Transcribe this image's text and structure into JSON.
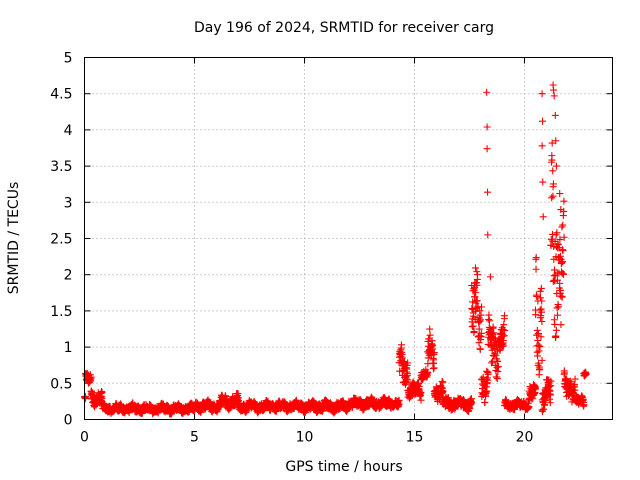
{
  "chart_data": {
    "type": "scatter",
    "title": "Day 196 of 2024, SRMTID for receiver carg",
    "xlabel": "GPS time / hours",
    "ylabel": "SRMTID / TECUs",
    "xlim": [
      0,
      24
    ],
    "ylim": [
      0,
      5
    ],
    "x_ticks": [
      0,
      5,
      10,
      15,
      20
    ],
    "x_tick_labels": [
      "0",
      "5",
      "10",
      "15",
      "20"
    ],
    "y_ticks": [
      0,
      0.5,
      1,
      1.5,
      2,
      2.5,
      3,
      3.5,
      4,
      4.5,
      5
    ],
    "y_tick_labels": [
      "0",
      "0.5",
      "1",
      "1.5",
      "2",
      "2.5",
      "3",
      "3.5",
      "4",
      "4.5",
      "5"
    ],
    "grid": true,
    "marker": "+",
    "marker_color": "#ff0000",
    "series": [
      {
        "name": "SRMTID",
        "segments": [
          {
            "t0": 0.0,
            "t1": 0.05,
            "base": 0.3,
            "amp": 0.05
          },
          {
            "t0": 0.05,
            "t1": 0.3,
            "base": 0.55,
            "amp": 0.1
          },
          {
            "t0": 0.3,
            "t1": 0.8,
            "base": 0.3,
            "amp": 0.12
          },
          {
            "t0": 0.8,
            "t1": 5.0,
            "base": 0.15,
            "amp": 0.07
          },
          {
            "t0": 5.0,
            "t1": 6.2,
            "base": 0.18,
            "amp": 0.08
          },
          {
            "t0": 6.2,
            "t1": 7.0,
            "base": 0.25,
            "amp": 0.1
          },
          {
            "t0": 7.0,
            "t1": 12.0,
            "base": 0.18,
            "amp": 0.08
          },
          {
            "t0": 12.0,
            "t1": 14.3,
            "base": 0.22,
            "amp": 0.08
          },
          {
            "t0": 14.3,
            "t1": 14.7,
            "base": 0.7,
            "amp": 0.3
          },
          {
            "t0": 14.7,
            "t1": 15.3,
            "base": 0.4,
            "amp": 0.12
          },
          {
            "t0": 15.3,
            "t1": 15.6,
            "base": 0.65,
            "amp": 0.1
          },
          {
            "t0": 15.6,
            "t1": 15.9,
            "base": 0.9,
            "amp": 0.3
          },
          {
            "t0": 15.9,
            "t1": 16.3,
            "base": 0.4,
            "amp": 0.15
          },
          {
            "t0": 16.3,
            "t1": 17.6,
            "base": 0.22,
            "amp": 0.1
          },
          {
            "t0": 17.6,
            "t1": 18.05,
            "base": 1.5,
            "amp": 0.6
          },
          {
            "t0": 18.05,
            "t1": 18.35,
            "base": 0.5,
            "amp": 0.3
          },
          {
            "t0": 18.35,
            "t1": 18.9,
            "base": 1.0,
            "amp": 0.4
          },
          {
            "t0": 18.9,
            "t1": 19.1,
            "base": 1.15,
            "amp": 0.3
          },
          {
            "t0": 19.1,
            "t1": 20.2,
            "base": 0.2,
            "amp": 0.07
          },
          {
            "t0": 20.2,
            "t1": 20.5,
            "base": 0.35,
            "amp": 0.15
          },
          {
            "t0": 20.5,
            "t1": 20.8,
            "base": 1.4,
            "amp": 1.0
          },
          {
            "t0": 20.8,
            "t1": 21.2,
            "base": 0.35,
            "amp": 0.25
          },
          {
            "t0": 21.2,
            "t1": 21.5,
            "base": 2.5,
            "amp": 1.5
          },
          {
            "t0": 21.5,
            "t1": 21.8,
            "base": 2.0,
            "amp": 1.0
          },
          {
            "t0": 21.8,
            "t1": 22.3,
            "base": 0.45,
            "amp": 0.2
          },
          {
            "t0": 22.3,
            "t1": 22.7,
            "base": 0.25,
            "amp": 0.08
          },
          {
            "t0": 22.7,
            "t1": 22.8,
            "base": 0.65,
            "amp": 0.05
          }
        ],
        "spikes": [
          {
            "x": 18.28,
            "y": 4.52
          },
          {
            "x": 18.3,
            "y": 4.04
          },
          {
            "x": 18.3,
            "y": 3.74
          },
          {
            "x": 18.32,
            "y": 3.14
          },
          {
            "x": 18.33,
            "y": 2.55
          },
          {
            "x": 18.45,
            "y": 1.97
          },
          {
            "x": 20.8,
            "y": 4.5
          },
          {
            "x": 20.82,
            "y": 4.12
          },
          {
            "x": 20.8,
            "y": 3.78
          },
          {
            "x": 20.83,
            "y": 3.28
          },
          {
            "x": 20.85,
            "y": 2.8
          },
          {
            "x": 21.3,
            "y": 4.62
          },
          {
            "x": 21.32,
            "y": 4.55
          },
          {
            "x": 21.35,
            "y": 4.47
          },
          {
            "x": 21.4,
            "y": 4.2
          },
          {
            "x": 21.42,
            "y": 3.85
          },
          {
            "x": 21.45,
            "y": 3.5
          },
          {
            "x": 21.6,
            "y": 3.12
          },
          {
            "x": 21.65,
            "y": 2.9
          },
          {
            "x": 21.7,
            "y": 2.66
          }
        ]
      }
    ]
  }
}
